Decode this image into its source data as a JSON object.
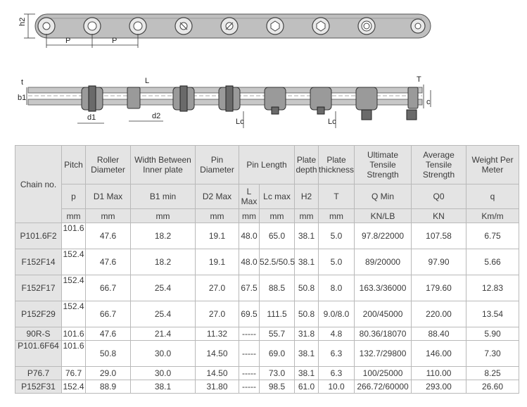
{
  "drawing": {
    "top_labels": [
      "h2",
      "P",
      "P"
    ],
    "side_labels": [
      "t",
      "b1",
      "L",
      "d1",
      "d2",
      "Lc",
      "Lc",
      "T",
      "c"
    ]
  },
  "table": {
    "row_header_label": "Chain no.",
    "columns": [
      {
        "name": "Pitch",
        "symbol": "p",
        "unit": "mm"
      },
      {
        "name": "Roller Diameter",
        "symbol": "D1 Max",
        "unit": "mm"
      },
      {
        "name": "Width Between Inner plate",
        "symbol": "B1 min",
        "unit": "mm"
      },
      {
        "name": "Pin Diameter",
        "symbol": "D2 Max",
        "unit": "mm"
      },
      {
        "name": "Pin Length",
        "symbol": "L Max",
        "unit": "mm"
      },
      {
        "name": "",
        "symbol": "Lc max",
        "unit": "mm"
      },
      {
        "name": "Plate depth",
        "symbol": "H2",
        "unit": "mm"
      },
      {
        "name": "Plate thickness",
        "symbol": "T",
        "unit": "mm"
      },
      {
        "name": "Ultimate Tensile Strength",
        "symbol": "Q Min",
        "unit": "KN/LB"
      },
      {
        "name": "Average Tensile Strength",
        "symbol": "Q0",
        "unit": "KN"
      },
      {
        "name": "Weight Per Meter",
        "symbol": "q",
        "unit": "Km/m"
      }
    ],
    "rows": [
      {
        "chain": "P101.6F2",
        "values": [
          "101.6",
          "47.6",
          "18.2",
          "19.1",
          "48.0",
          "65.0",
          "38.1",
          "5.0",
          "97.8/22000",
          "107.58",
          "6.75"
        ]
      },
      {
        "chain": "F152F14",
        "values": [
          "152.4",
          "47.6",
          "18.2",
          "19.1",
          "48.0",
          "52.5/50.5",
          "38.1",
          "5.0",
          "89/20000",
          "97.90",
          "5.66"
        ]
      },
      {
        "chain": "F152F17",
        "values": [
          "152.4",
          "66.7",
          "25.4",
          "27.0",
          "67.5",
          "88.5",
          "50.8",
          "8.0",
          "163.3/36000",
          "179.60",
          "12.83"
        ]
      },
      {
        "chain": "P152F29",
        "values": [
          "152.4",
          "66.7",
          "25.4",
          "27.0",
          "69.5",
          "111.5",
          "50.8",
          "9.0/8.0",
          "200/45000",
          "220.00",
          "13.54"
        ]
      },
      {
        "chain": "90R-S",
        "values": [
          "101.6",
          "47.6",
          "21.4",
          "11.32",
          "-----",
          "55.7",
          "31.8",
          "4.8",
          "80.36/18070",
          "88.40",
          "5.90"
        ]
      },
      {
        "chain": "P101.6F64",
        "values": [
          "101.6",
          "50.8",
          "30.0",
          "14.50",
          "-----",
          "69.0",
          "38.1",
          "6.3",
          "132.7/29800",
          "146.00",
          "7.30"
        ]
      },
      {
        "chain": "P76.7",
        "values": [
          "76.7",
          "29.0",
          "30.0",
          "14.50",
          "-----",
          "73.0",
          "38.1",
          "6.3",
          "100/25000",
          "110.00",
          "8.25"
        ]
      },
      {
        "chain": "P152F31",
        "values": [
          "152.4",
          "88.9",
          "38.1",
          "31.80",
          "-----",
          "98.5",
          "61.0",
          "10.0",
          "266.72/60000",
          "293.00",
          "26.60"
        ]
      }
    ]
  }
}
